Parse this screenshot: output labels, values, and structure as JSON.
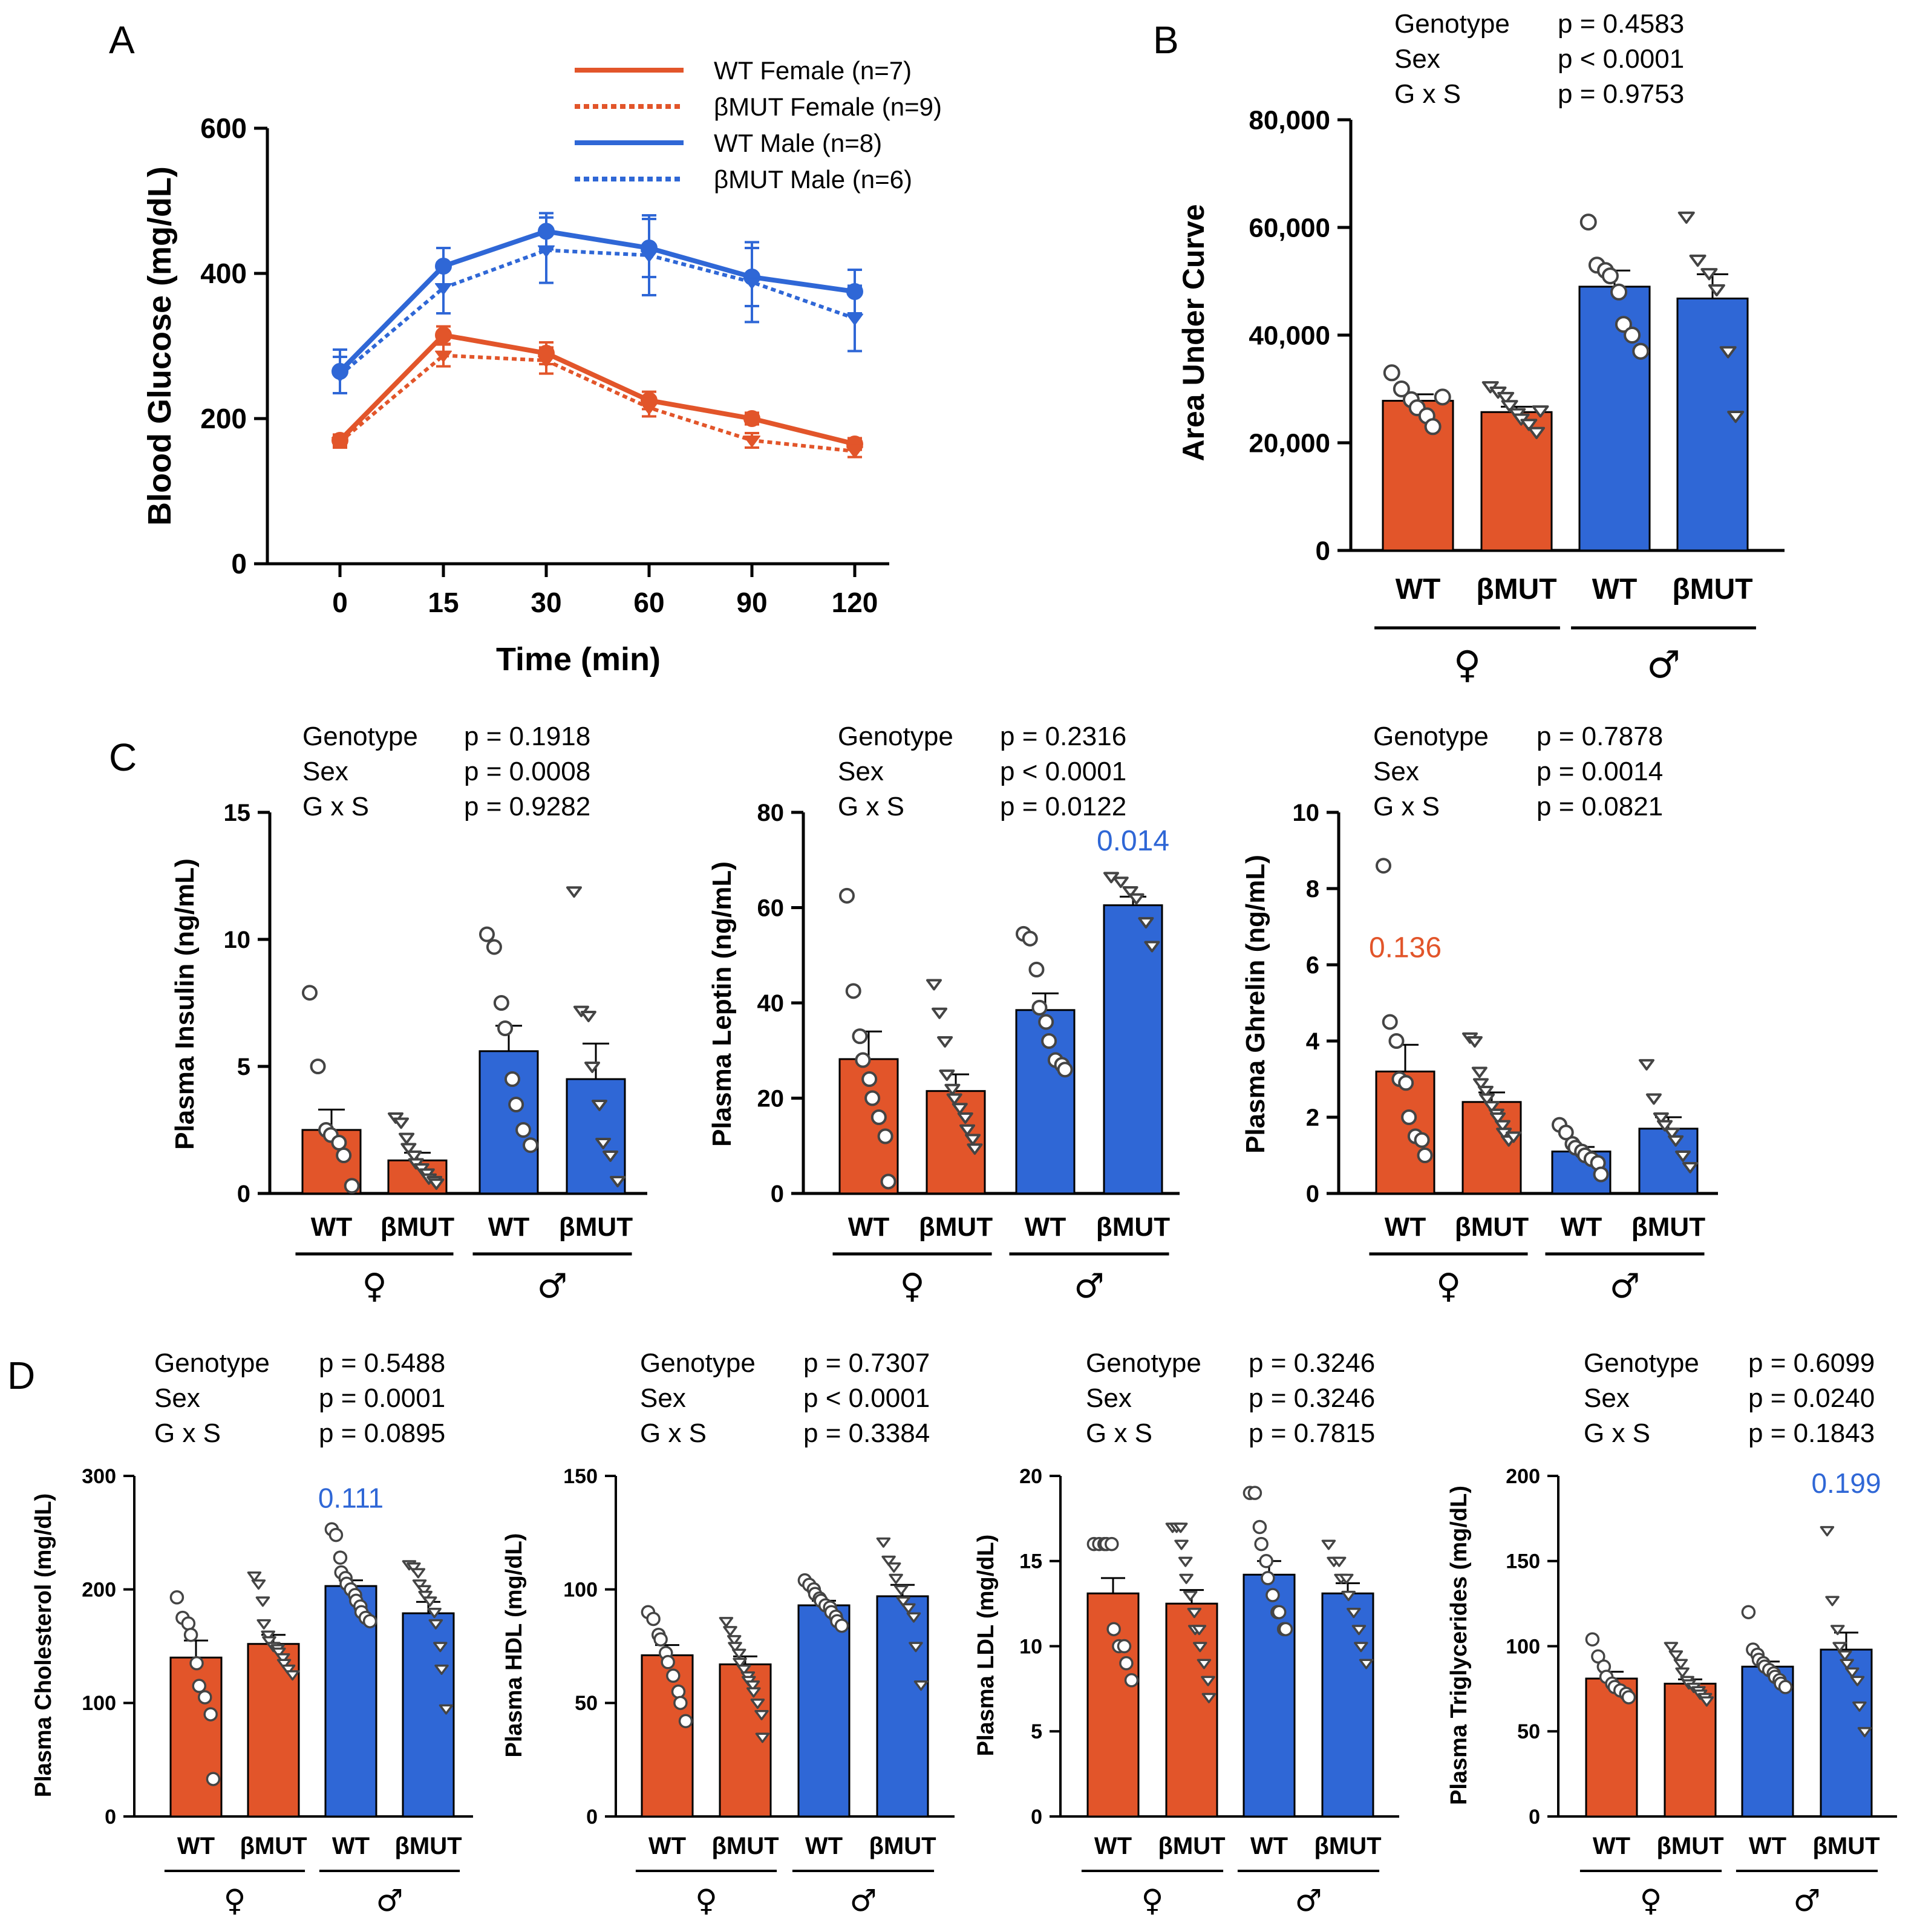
{
  "colors": {
    "female": "#E2552A",
    "male": "#2F67D6",
    "axis": "#000000",
    "point_fill": "#ffffff"
  },
  "panel_a": {
    "letter": "A",
    "legend": [
      {
        "label": "WT Female  (n=7)",
        "sex": "female",
        "dashed": false
      },
      {
        "label": "βMUT  Female  (n=9)",
        "sex": "female",
        "dashed": true
      },
      {
        "label": "WT Male  (n=8)",
        "sex": "male",
        "dashed": false
      },
      {
        "label": "βMUT  Male  (n=6)",
        "sex": "male",
        "dashed": true
      }
    ]
  },
  "panel_b": {
    "letter": "B"
  },
  "panel_c": {
    "letter": "C"
  },
  "panel_d": {
    "letter": "D"
  },
  "chart_data": [
    {
      "id": "gtt",
      "type": "line",
      "panel": "A",
      "xlabel": "Time (min)",
      "ylabel": "Blood Glucose (mg/dL)",
      "categories": [
        "0",
        "15",
        "30",
        "60",
        "90",
        "120"
      ],
      "ylim": [
        0,
        600
      ],
      "yticks": [
        "0",
        "200",
        "400",
        "600"
      ],
      "series": [
        {
          "name": "WT Female  (n=7)",
          "sex": "female",
          "dashed": false,
          "marker": "circle",
          "values": [
            170,
            315,
            290,
            225,
            200,
            165
          ],
          "err": [
            8,
            12,
            15,
            12,
            8,
            8
          ]
        },
        {
          "name": "βMUT  Female  (n=9)",
          "sex": "female",
          "dashed": true,
          "marker": "triangle",
          "values": [
            168,
            287,
            280,
            215,
            170,
            155
          ],
          "err": [
            8,
            15,
            18,
            12,
            10,
            8
          ]
        },
        {
          "name": "WT Male  (n=8)",
          "sex": "male",
          "dashed": false,
          "marker": "circle",
          "values": [
            265,
            410,
            458,
            435,
            395,
            375
          ],
          "err": [
            30,
            25,
            25,
            40,
            40,
            30
          ]
        },
        {
          "name": "βMUT  Male  (n=6)",
          "sex": "male",
          "dashed": true,
          "marker": "triangle",
          "values": [
            260,
            380,
            432,
            425,
            388,
            338
          ],
          "err": [
            25,
            35,
            45,
            55,
            55,
            45
          ]
        }
      ]
    },
    {
      "id": "auc",
      "type": "bar",
      "panel": "B",
      "ylabel": "Area Under Curve",
      "ylim": [
        0,
        80000
      ],
      "yticks": [
        "0",
        "20,000",
        "40,000",
        "60,000",
        "80,000"
      ],
      "categories": [
        "WT",
        "βMUT",
        "WT",
        "βMUT"
      ],
      "sex_labels": [
        "♀",
        "♂"
      ],
      "stats": [
        {
          "label": "Genotype",
          "p": "p = 0.4583"
        },
        {
          "label": "Sex",
          "p": "p < 0.0001"
        },
        {
          "label": "G x S",
          "p": "p = 0.9753"
        }
      ],
      "annotation": null,
      "bars": [
        {
          "value": 27800,
          "sem": 1200,
          "points": [
            33000,
            30000,
            28000,
            26500,
            25000,
            23000,
            28500
          ]
        },
        {
          "value": 25700,
          "sem": 1000,
          "points": [
            30500,
            29500,
            28500,
            27000,
            25500,
            24500,
            23500,
            22000,
            26000
          ]
        },
        {
          "value": 49000,
          "sem": 3000,
          "points": [
            61000,
            53000,
            52000,
            51000,
            48000,
            42000,
            40000,
            37000
          ]
        },
        {
          "value": 46800,
          "sem": 4500,
          "points": [
            62000,
            54000,
            51500,
            48500,
            37000,
            25000
          ]
        }
      ]
    },
    {
      "id": "insulin",
      "type": "bar",
      "panel": "C",
      "ylabel": "Plasma Insulin (ng/mL)",
      "ylim": [
        0,
        15
      ],
      "yticks": [
        "0",
        "5",
        "10",
        "15"
      ],
      "categories": [
        "WT",
        "βMUT",
        "WT",
        "βMUT"
      ],
      "sex_labels": [
        "♀",
        "♂"
      ],
      "stats": [
        {
          "label": "Genotype",
          "p": "p = 0.1918"
        },
        {
          "label": "Sex",
          "p": "p = 0.0008"
        },
        {
          "label": "G x S",
          "p": "p = 0.9282"
        }
      ],
      "annotation": null,
      "bars": [
        {
          "value": 2.5,
          "sem": 0.8,
          "points": [
            7.9,
            5.0,
            2.5,
            2.3,
            2.0,
            1.5,
            0.3
          ]
        },
        {
          "value": 1.3,
          "sem": 0.3,
          "points": [
            3.0,
            2.8,
            2.2,
            1.8,
            1.5,
            1.2,
            1.0,
            0.8,
            0.6,
            0.5,
            0.4
          ]
        },
        {
          "value": 5.6,
          "sem": 1.0,
          "points": [
            10.2,
            9.7,
            7.5,
            6.5,
            4.5,
            3.5,
            2.5,
            1.9
          ]
        },
        {
          "value": 4.5,
          "sem": 1.4,
          "points": [
            11.9,
            7.2,
            7.0,
            5.0,
            3.5,
            2.0,
            1.5,
            0.5
          ]
        }
      ]
    },
    {
      "id": "leptin",
      "type": "bar",
      "panel": "C",
      "ylabel": "Plasma Leptin (ng/mL)",
      "ylim": [
        0,
        80
      ],
      "yticks": [
        "0",
        "20",
        "40",
        "60",
        "80"
      ],
      "categories": [
        "WT",
        "βMUT",
        "WT",
        "βMUT"
      ],
      "sex_labels": [
        "♀",
        "♂"
      ],
      "stats": [
        {
          "label": "Genotype",
          "p": "p = 0.2316"
        },
        {
          "label": "Sex",
          "p": "p < 0.0001"
        },
        {
          "label": "G x S",
          "p": "p = 0.0122"
        }
      ],
      "annotation": {
        "text": "0.014",
        "sex": "male",
        "bar_index": 3,
        "y": 72
      },
      "bars": [
        {
          "value": 28.2,
          "sem": 5.8,
          "points": [
            62.5,
            42.5,
            33.0,
            28.0,
            24.0,
            20.0,
            16.0,
            12.0,
            2.5
          ]
        },
        {
          "value": 21.5,
          "sem": 3.5,
          "points": [
            44.0,
            38.0,
            32.0,
            25.0,
            22.0,
            20.0,
            18.0,
            16.0,
            13.5,
            11.5,
            9.5
          ]
        },
        {
          "value": 38.5,
          "sem": 3.5,
          "points": [
            54.5,
            53.5,
            47.0,
            39.0,
            36.0,
            32.0,
            28.0,
            27.0,
            26.0
          ]
        },
        {
          "value": 60.5,
          "sem": 1.8,
          "points": [
            66.5,
            65.5,
            63.5,
            62.0,
            57.0,
            52.0
          ]
        }
      ]
    },
    {
      "id": "ghrelin",
      "type": "bar",
      "panel": "C",
      "ylabel": "Plasma Ghrelin (ng/mL)",
      "ylim": [
        0,
        10
      ],
      "yticks": [
        "0",
        "2",
        "4",
        "6",
        "8",
        "10"
      ],
      "categories": [
        "WT",
        "βMUT",
        "WT",
        "βMUT"
      ],
      "sex_labels": [
        "♀",
        "♂"
      ],
      "stats": [
        {
          "label": "Genotype",
          "p": "p = 0.7878"
        },
        {
          "label": "Sex",
          "p": "p = 0.0014"
        },
        {
          "label": "G x S",
          "p": "p = 0.0821"
        }
      ],
      "annotation": {
        "text": "0.136",
        "sex": "female",
        "bar_index": 0,
        "y": 6.2
      },
      "bars": [
        {
          "value": 3.2,
          "sem": 0.7,
          "points": [
            8.6,
            4.5,
            4.0,
            3.0,
            2.9,
            2.0,
            1.5,
            1.4,
            1.0
          ]
        },
        {
          "value": 2.4,
          "sem": 0.25,
          "points": [
            4.1,
            4.0,
            3.2,
            2.9,
            2.7,
            2.5,
            2.3,
            2.1,
            2.0,
            1.8,
            1.6,
            1.4,
            1.5
          ]
        },
        {
          "value": 1.1,
          "sem": 0.12,
          "points": [
            1.8,
            1.6,
            1.3,
            1.2,
            1.1,
            1.0,
            0.9,
            0.8,
            0.5
          ]
        },
        {
          "value": 1.7,
          "sem": 0.3,
          "points": [
            3.4,
            2.5,
            2.0,
            1.8,
            1.6,
            1.4,
            1.0,
            0.7
          ]
        }
      ]
    },
    {
      "id": "cholesterol",
      "type": "bar",
      "panel": "D",
      "ylabel": "Plasma Cholesterol (mg/dL)",
      "ylim": [
        0,
        300
      ],
      "yticks": [
        "0",
        "100",
        "200",
        "300"
      ],
      "categories": [
        "WT",
        "βMUT",
        "WT",
        "βMUT"
      ],
      "sex_labels": [
        "♀",
        "♂"
      ],
      "stats": [
        {
          "label": "Genotype",
          "p": "p = 0.5488"
        },
        {
          "label": "Sex",
          "p": "p = 0.0001"
        },
        {
          "label": "G x S",
          "p": "p = 0.0895"
        }
      ],
      "annotation": {
        "text": "0.111",
        "sex": "male",
        "bar_index": 2,
        "y": 272
      },
      "bars": [
        {
          "value": 140,
          "sem": 15,
          "points": [
            193,
            175,
            170,
            160,
            135,
            115,
            105,
            90,
            33
          ]
        },
        {
          "value": 152,
          "sem": 8,
          "points": [
            212,
            205,
            190,
            170,
            160,
            155,
            150,
            148,
            145,
            140,
            135,
            130,
            125
          ]
        },
        {
          "value": 203,
          "sem": 5,
          "points": [
            253,
            248,
            228,
            215,
            210,
            205,
            200,
            195,
            190,
            185,
            180,
            175,
            172
          ]
        },
        {
          "value": 179,
          "sem": 10,
          "points": [
            222,
            220,
            215,
            205,
            200,
            195,
            190,
            180,
            170,
            150,
            130,
            95
          ]
        }
      ]
    },
    {
      "id": "hdl",
      "type": "bar",
      "panel": "D",
      "ylabel": "Plasma HDL (mg/dL)",
      "ylim": [
        0,
        150
      ],
      "yticks": [
        "0",
        "50",
        "100",
        "150"
      ],
      "categories": [
        "WT",
        "βMUT",
        "WT",
        "βMUT"
      ],
      "sex_labels": [
        "♀",
        "♂"
      ],
      "stats": [
        {
          "label": "Genotype",
          "p": "p = 0.7307"
        },
        {
          "label": "Sex",
          "p": "p < 0.0001"
        },
        {
          "label": "G x S",
          "p": "p = 0.3384"
        }
      ],
      "annotation": null,
      "bars": [
        {
          "value": 71,
          "sem": 4.5,
          "points": [
            90,
            87,
            80,
            78,
            72,
            68,
            62,
            55,
            50,
            42
          ]
        },
        {
          "value": 67,
          "sem": 3.5,
          "points": [
            86,
            82,
            78,
            75,
            72,
            68,
            65,
            62,
            60,
            58,
            55,
            50,
            45,
            35
          ]
        },
        {
          "value": 93,
          "sem": 2,
          "points": [
            104,
            102,
            100,
            98,
            96,
            95,
            93,
            92,
            90,
            88,
            86,
            84
          ]
        },
        {
          "value": 97,
          "sem": 5,
          "points": [
            121,
            113,
            110,
            105,
            100,
            95,
            92,
            88,
            75,
            58
          ]
        }
      ]
    },
    {
      "id": "ldl",
      "type": "bar",
      "panel": "D",
      "ylabel": "Plasma LDL (mg/dL)",
      "ylim": [
        0,
        20
      ],
      "yticks": [
        "0",
        "5",
        "10",
        "15",
        "20"
      ],
      "categories": [
        "WT",
        "βMUT",
        "WT",
        "βMUT"
      ],
      "sex_labels": [
        "♀",
        "♂"
      ],
      "stats": [
        {
          "label": "Genotype",
          "p": "p = 0.3246"
        },
        {
          "label": "Sex",
          "p": "p = 0.3246"
        },
        {
          "label": "G x S",
          "p": "p = 0.7815"
        }
      ],
      "annotation": null,
      "bars": [
        {
          "value": 13.1,
          "sem": 0.9,
          "points": [
            16,
            16,
            16,
            16,
            16,
            11,
            10,
            10,
            9,
            8
          ]
        },
        {
          "value": 12.5,
          "sem": 0.8,
          "points": [
            17,
            17,
            17,
            16,
            15,
            14,
            13,
            12,
            11,
            11,
            10,
            9,
            8,
            7
          ]
        },
        {
          "value": 14.2,
          "sem": 0.8,
          "points": [
            19,
            19,
            17,
            16,
            15,
            14,
            13,
            12,
            12,
            11,
            11
          ]
        },
        {
          "value": 13.1,
          "sem": 0.6,
          "points": [
            16,
            15,
            15,
            14,
            14,
            13,
            12,
            11,
            10,
            9
          ]
        }
      ]
    },
    {
      "id": "triglycerides",
      "type": "bar",
      "panel": "D",
      "ylabel": "Plasma Triglycerides (mg/dL)",
      "ylim": [
        0,
        200
      ],
      "yticks": [
        "0",
        "50",
        "100",
        "150",
        "200"
      ],
      "categories": [
        "WT",
        "βMUT",
        "WT",
        "βMUT"
      ],
      "sex_labels": [
        "♀",
        "♂"
      ],
      "stats": [
        {
          "label": "Genotype",
          "p": "p = 0.6099"
        },
        {
          "label": "Sex",
          "p": "p = 0.0240"
        },
        {
          "label": "G x S",
          "p": "p = 0.1843"
        }
      ],
      "annotation": {
        "text": "0.199",
        "sex": "male",
        "bar_index": 3,
        "y": 190
      },
      "bars": [
        {
          "value": 81,
          "sem": 4,
          "points": [
            104,
            94,
            88,
            82,
            78,
            76,
            74,
            72,
            70
          ]
        },
        {
          "value": 78,
          "sem": 2.5,
          "points": [
            100,
            95,
            90,
            85,
            80,
            78,
            76,
            74,
            72,
            70,
            68
          ]
        },
        {
          "value": 88,
          "sem": 3,
          "points": [
            120,
            98,
            95,
            92,
            90,
            88,
            86,
            84,
            82,
            80,
            78,
            76
          ]
        },
        {
          "value": 98,
          "sem": 10,
          "points": [
            168,
            127,
            110,
            100,
            95,
            90,
            85,
            80,
            65,
            50
          ]
        }
      ]
    }
  ]
}
